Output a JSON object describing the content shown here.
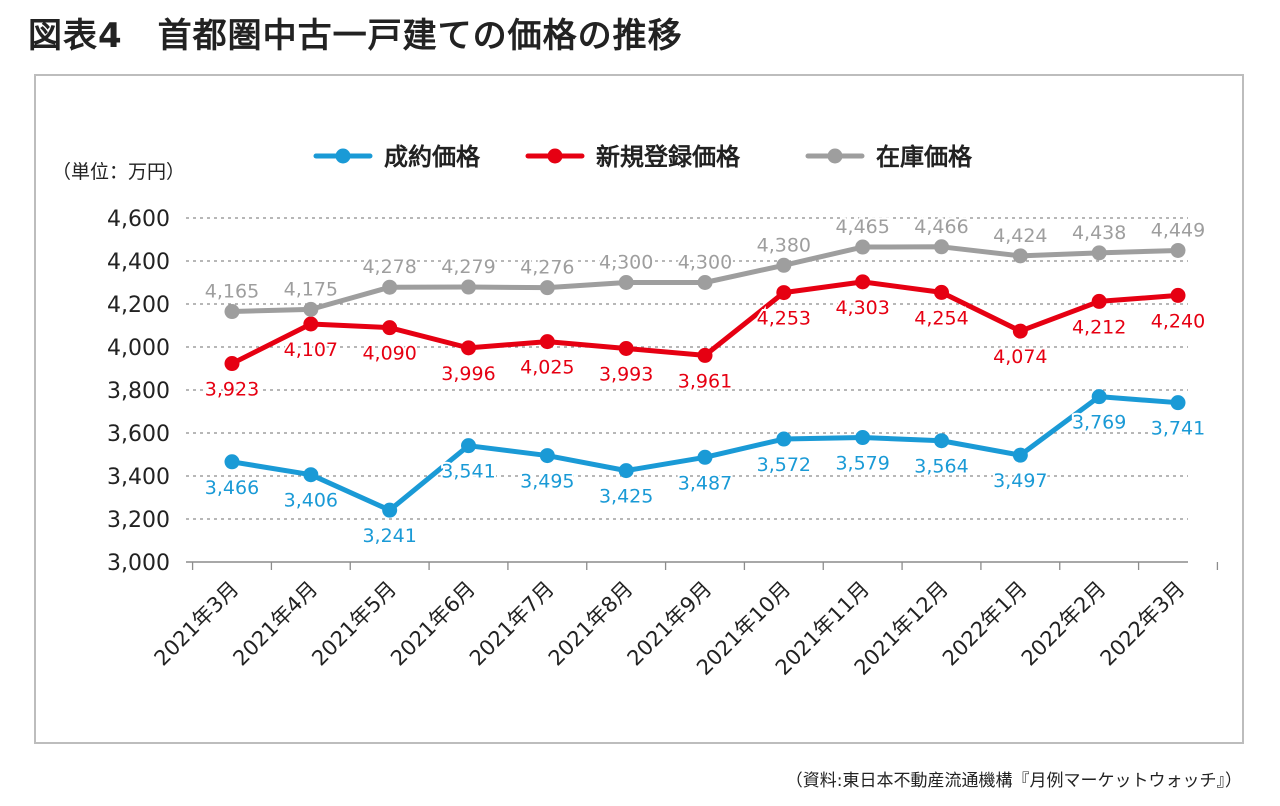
{
  "page": {
    "title": "図表4　首都圏中古一戸建ての価格の推移",
    "source": "（資料:東日本不動産流通機構『月例マーケットウォッチ』）"
  },
  "chart_data": {
    "type": "line",
    "unit_label": "（単位：万円）",
    "categories": [
      "2021年3月",
      "2021年4月",
      "2021年5月",
      "2021年6月",
      "2021年7月",
      "2021年8月",
      "2021年9月",
      "2021年10月",
      "2021年11月",
      "2021年12月",
      "2022年1月",
      "2022年2月",
      "2022年3月"
    ],
    "ylim": [
      3000,
      4600
    ],
    "yticks": [
      3000,
      3200,
      3400,
      3600,
      3800,
      4000,
      4200,
      4400,
      4600
    ],
    "ytick_labels": [
      "3,000",
      "3,200",
      "3,400",
      "3,600",
      "3,800",
      "4,000",
      "4,200",
      "4,400",
      "4,600"
    ],
    "grid": true,
    "legend_position": "top",
    "series": [
      {
        "name": "成約価格",
        "color": "#1a9ad6",
        "label_position": "below",
        "values": [
          3466,
          3406,
          3241,
          3541,
          3495,
          3425,
          3487,
          3572,
          3579,
          3564,
          3497,
          3769,
          3741
        ],
        "labels": [
          "3,466",
          "3,406",
          "3,241",
          "3,541",
          "3,495",
          "3,425",
          "3,487",
          "3,572",
          "3,579",
          "3,564",
          "3,497",
          "3,769",
          "3,741"
        ]
      },
      {
        "name": "新規登録価格",
        "color": "#e60012",
        "label_position": "below",
        "values": [
          3923,
          4107,
          4090,
          3996,
          4025,
          3993,
          3961,
          4253,
          4303,
          4254,
          4074,
          4212,
          4240
        ],
        "labels": [
          "3,923",
          "4,107",
          "4,090",
          "3,996",
          "4,025",
          "3,993",
          "3,961",
          "4,253",
          "4,303",
          "4,254",
          "4,074",
          "4,212",
          "4,240"
        ]
      },
      {
        "name": "在庫価格",
        "color": "#9e9e9e",
        "label_position": "above",
        "values": [
          4165,
          4175,
          4278,
          4279,
          4276,
          4300,
          4300,
          4380,
          4465,
          4466,
          4424,
          4438,
          4449
        ],
        "labels": [
          "4,165",
          "4,175",
          "4,278",
          "4,279",
          "4,276",
          "4,300",
          "4,300",
          "4,380",
          "4,465",
          "4,466",
          "4,424",
          "4,438",
          "4,449"
        ]
      }
    ]
  }
}
